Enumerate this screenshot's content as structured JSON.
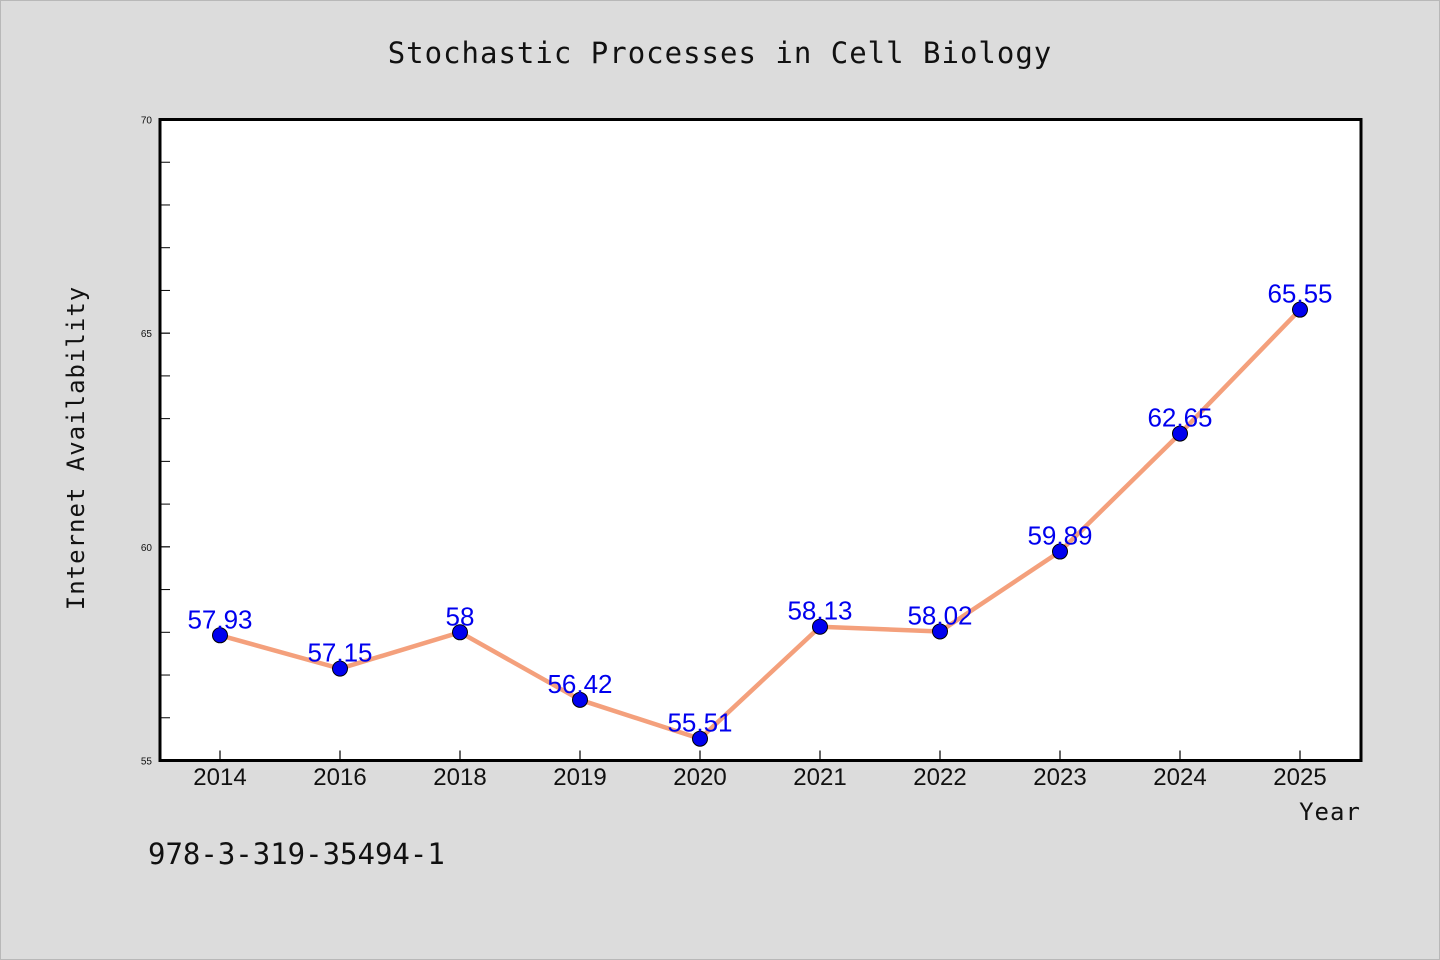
{
  "chart_data": {
    "type": "line",
    "title": "Stochastic Processes in Cell Biology",
    "xlabel": "Year",
    "ylabel": "Internet Availability",
    "categories": [
      "2014",
      "2016",
      "2018",
      "2019",
      "2020",
      "2021",
      "2022",
      "2023",
      "2024",
      "2025"
    ],
    "series": [
      {
        "values": [
          57.93,
          57.15,
          58,
          56.42,
          55.51,
          58.13,
          58.02,
          59.89,
          62.65,
          65.55
        ],
        "labels": [
          "57.93",
          "57.15",
          "58",
          "56.42",
          "55.51",
          "58.13",
          "58.02",
          "59.89",
          "62.65",
          "65.55"
        ]
      }
    ],
    "ylim": [
      55,
      70
    ],
    "yticks": [
      "55",
      "60",
      "65",
      "70"
    ],
    "grid": false,
    "colors": {
      "line": "#f4a07c",
      "marker": "#0000ee",
      "label": "#0000ee",
      "frame": "#000000",
      "plot_bg": "#ffffff",
      "page_bg": "#dcdcdc"
    }
  },
  "footer": {
    "isbn": "978-3-319-35494-1"
  }
}
